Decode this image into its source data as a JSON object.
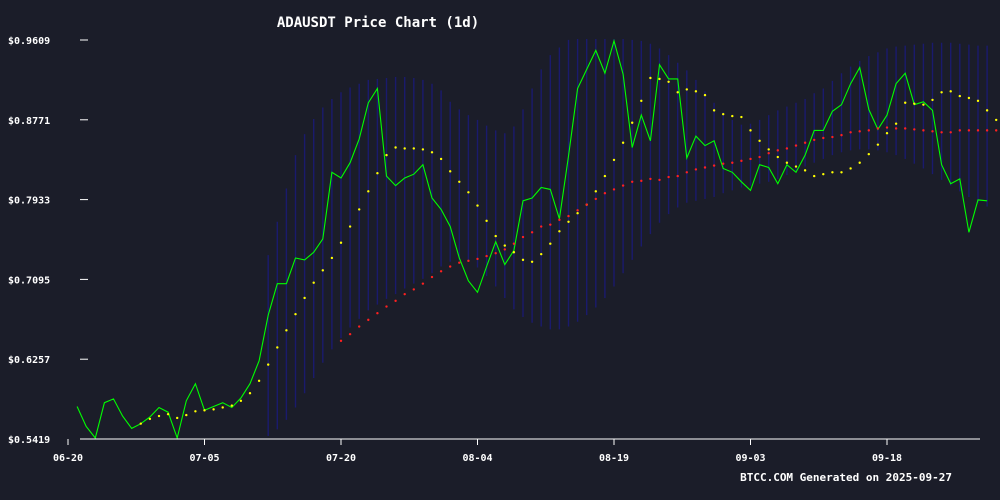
{
  "chart_data": {
    "type": "line",
    "title": "ADAUSDT Price Chart (1d)",
    "footer": "BTCC.COM Generated on 2025-09-27",
    "colors": {
      "background": "#1b1d29",
      "price": "#00ff00",
      "ema_short": "#ffff00",
      "ema_long": "#ff2020",
      "bollinger": "#1a1a7a",
      "axis": "#ffffff"
    },
    "xlabel": "",
    "ylabel": "",
    "ylim": [
      0.5419,
      0.9609
    ],
    "y_ticks": [
      {
        "value": 0.9609,
        "label": "$0.9609"
      },
      {
        "value": 0.8771,
        "label": "$0.8771"
      },
      {
        "value": 0.7933,
        "label": "$0.7933"
      },
      {
        "value": 0.7095,
        "label": "$0.7095"
      },
      {
        "value": 0.6257,
        "label": "$0.6257"
      },
      {
        "value": 0.5419,
        "label": "$0.5419"
      }
    ],
    "x_ticks": [
      {
        "day": 0,
        "label": "06-20"
      },
      {
        "day": 15,
        "label": "07-05"
      },
      {
        "day": 30,
        "label": "07-20"
      },
      {
        "day": 45,
        "label": "08-04"
      },
      {
        "day": 60,
        "label": "08-19"
      },
      {
        "day": 75,
        "label": "09-03"
      },
      {
        "day": 90,
        "label": "09-18"
      }
    ],
    "x_range": [
      0,
      101
    ],
    "x_start_date": "06-20",
    "series": [
      {
        "key": "price",
        "start": 1,
        "values": [
          0.576,
          0.555,
          0.543,
          0.58,
          0.584,
          0.566,
          0.553,
          0.558,
          0.565,
          0.575,
          0.57,
          0.543,
          0.582,
          0.6,
          0.572,
          0.576,
          0.58,
          0.575,
          0.585,
          0.6,
          0.624,
          0.672,
          0.705,
          0.705,
          0.732,
          0.73,
          0.738,
          0.752,
          0.822,
          0.816,
          0.832,
          0.857,
          0.895,
          0.91,
          0.818,
          0.808,
          0.816,
          0.82,
          0.83,
          0.795,
          0.783,
          0.765,
          0.732,
          0.708,
          0.696,
          0.723,
          0.749,
          0.725,
          0.74,
          0.792,
          0.795,
          0.806,
          0.804,
          0.773,
          0.839,
          0.91,
          0.93,
          0.95,
          0.926,
          0.96,
          0.925,
          0.848,
          0.882,
          0.855,
          0.935,
          0.92,
          0.92,
          0.837,
          0.86,
          0.85,
          0.855,
          0.826,
          0.822,
          0.812,
          0.803,
          0.83,
          0.827,
          0.81,
          0.83,
          0.822,
          0.84,
          0.866,
          0.866,
          0.886,
          0.893,
          0.915,
          0.932,
          0.888,
          0.867,
          0.882,
          0.915,
          0.926,
          0.893,
          0.896,
          0.887,
          0.83,
          0.81,
          0.815,
          0.759,
          0.793,
          0.792
        ]
      },
      {
        "key": "ema_short",
        "start": 8,
        "values": [
          0.558,
          0.563,
          0.566,
          0.568,
          0.564,
          0.567,
          0.571,
          0.572,
          0.573,
          0.575,
          0.577,
          0.582,
          0.59,
          0.603,
          0.62,
          0.638,
          0.656,
          0.673,
          0.69,
          0.706,
          0.719,
          0.732,
          0.748,
          0.765,
          0.783,
          0.802,
          0.821,
          0.84,
          0.848,
          0.847,
          0.847,
          0.846,
          0.843,
          0.836,
          0.823,
          0.812,
          0.801,
          0.787,
          0.771,
          0.755,
          0.745,
          0.738,
          0.73,
          0.728,
          0.736,
          0.747,
          0.76,
          0.77,
          0.779,
          0.788,
          0.802,
          0.818,
          0.835,
          0.853,
          0.874,
          0.897,
          0.921,
          0.92,
          0.917,
          0.906,
          0.909,
          0.907,
          0.903,
          0.887,
          0.883,
          0.881,
          0.88,
          0.866,
          0.855,
          0.846,
          0.838,
          0.832,
          0.828,
          0.824,
          0.818,
          0.82,
          0.822,
          0.822,
          0.826,
          0.832,
          0.841,
          0.851,
          0.863,
          0.873,
          0.895,
          0.894,
          0.893,
          0.898,
          0.906,
          0.907,
          0.902,
          0.9,
          0.897,
          0.887,
          0.877,
          0.864,
          0.847,
          0.835,
          0.818
        ]
      },
      {
        "key": "ema_long",
        "start": 30,
        "values": [
          0.645,
          0.652,
          0.66,
          0.667,
          0.674,
          0.681,
          0.687,
          0.694,
          0.699,
          0.705,
          0.712,
          0.718,
          0.723,
          0.727,
          0.729,
          0.731,
          0.734,
          0.737,
          0.741,
          0.747,
          0.754,
          0.759,
          0.765,
          0.767,
          0.772,
          0.776,
          0.782,
          0.788,
          0.794,
          0.8,
          0.804,
          0.808,
          0.812,
          0.813,
          0.815,
          0.814,
          0.817,
          0.818,
          0.822,
          0.825,
          0.827,
          0.829,
          0.831,
          0.832,
          0.834,
          0.836,
          0.838,
          0.842,
          0.845,
          0.847,
          0.85,
          0.853,
          0.856,
          0.858,
          0.859,
          0.861,
          0.864,
          0.865,
          0.866,
          0.868,
          0.869,
          0.868,
          0.868,
          0.867,
          0.866,
          0.865,
          0.864,
          0.864,
          0.866,
          0.866,
          0.866,
          0.866,
          0.866,
          0.864,
          0.862,
          0.861,
          0.86,
          0.858,
          0.855
        ]
      }
    ],
    "bands": {
      "key": "bollinger",
      "start": 22,
      "upper": [
        0.735,
        0.77,
        0.805,
        0.84,
        0.862,
        0.878,
        0.89,
        0.899,
        0.906,
        0.911,
        0.915,
        0.919,
        0.92,
        0.921,
        0.922,
        0.922,
        0.921,
        0.919,
        0.915,
        0.908,
        0.896,
        0.888,
        0.882,
        0.877,
        0.871,
        0.866,
        0.863,
        0.87,
        0.888,
        0.91,
        0.93,
        0.945,
        0.953,
        0.961,
        0.962,
        0.962,
        0.962,
        0.962,
        0.962,
        0.962,
        0.961,
        0.96,
        0.957,
        0.952,
        0.945,
        0.937,
        0.929,
        0.919,
        0.907,
        0.895,
        0.885,
        0.877,
        0.872,
        0.873,
        0.877,
        0.882,
        0.887,
        0.891,
        0.895,
        0.899,
        0.905,
        0.91,
        0.918,
        0.926,
        0.933,
        0.939,
        0.944,
        0.948,
        0.952,
        0.954,
        0.955,
        0.956,
        0.957,
        0.958,
        0.958,
        0.958,
        0.957,
        0.956,
        0.955,
        0.955
      ],
      "lower": [
        0.545,
        0.552,
        0.562,
        0.575,
        0.59,
        0.606,
        0.622,
        0.636,
        0.648,
        0.659,
        0.668,
        0.677,
        0.683,
        0.689,
        0.694,
        0.7,
        0.705,
        0.71,
        0.716,
        0.723,
        0.728,
        0.73,
        0.728,
        0.722,
        0.713,
        0.702,
        0.69,
        0.678,
        0.67,
        0.664,
        0.66,
        0.657,
        0.657,
        0.66,
        0.665,
        0.672,
        0.68,
        0.69,
        0.702,
        0.716,
        0.73,
        0.744,
        0.757,
        0.769,
        0.778,
        0.785,
        0.79,
        0.792,
        0.794,
        0.796,
        0.8,
        0.803,
        0.806,
        0.808,
        0.81,
        0.812,
        0.815,
        0.819,
        0.823,
        0.828,
        0.832,
        0.836,
        0.84,
        0.843,
        0.845,
        0.846,
        0.846,
        0.845,
        0.843,
        0.84,
        0.836,
        0.831,
        0.826,
        0.82,
        0.814,
        0.808,
        0.802,
        0.796,
        0.79,
        0.786
      ]
    }
  }
}
